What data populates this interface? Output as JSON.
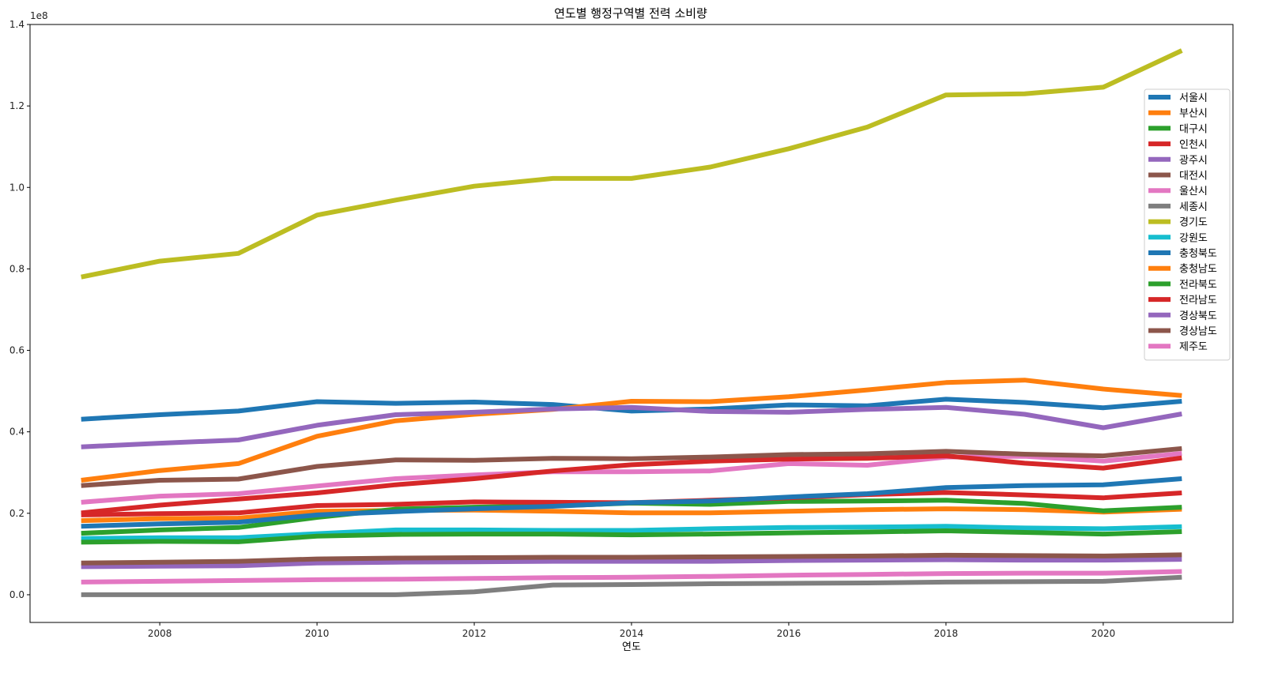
{
  "chart_data": {
    "type": "line",
    "title": "연도별 행정구역별 전력 소비량",
    "xlabel": "연도",
    "ylabel": "",
    "y_offset_label": "1e8",
    "x": [
      2007,
      2008,
      2009,
      2010,
      2011,
      2012,
      2013,
      2014,
      2015,
      2016,
      2017,
      2018,
      2019,
      2020,
      2021
    ],
    "xlim": [
      2006.35,
      2021.65
    ],
    "ylim": [
      -0.068,
      1.4
    ],
    "x_ticks": [
      2008,
      2010,
      2012,
      2014,
      2016,
      2018,
      2020
    ],
    "y_ticks": [
      "0.0",
      "0.2",
      "0.4",
      "0.6",
      "0.8",
      "1.0",
      "1.2",
      "1.4"
    ],
    "y_tick_values": [
      0.0,
      0.2,
      0.4,
      0.6,
      0.8,
      1.0,
      1.2,
      1.4
    ],
    "legend_position": "right",
    "grid": false,
    "series": [
      {
        "name": "서울시",
        "color": "#1f77b4",
        "values": [
          0.431,
          0.442,
          0.451,
          0.474,
          0.47,
          0.473,
          0.467,
          0.451,
          0.456,
          0.466,
          0.464,
          0.48,
          0.472,
          0.459,
          0.475
        ]
      },
      {
        "name": "부산시",
        "color": "#ff7f0e",
        "values": [
          0.182,
          0.187,
          0.188,
          0.205,
          0.207,
          0.208,
          0.205,
          0.201,
          0.201,
          0.205,
          0.209,
          0.211,
          0.209,
          0.203,
          0.21
        ]
      },
      {
        "name": "대구시",
        "color": "#2ca02c",
        "values": [
          0.151,
          0.159,
          0.165,
          0.19,
          0.21,
          0.215,
          0.218,
          0.225,
          0.222,
          0.229,
          0.23,
          0.232,
          0.224,
          0.206,
          0.215
        ]
      },
      {
        "name": "인천시",
        "color": "#d62728",
        "values": [
          0.196,
          0.199,
          0.201,
          0.219,
          0.222,
          0.228,
          0.227,
          0.226,
          0.232,
          0.238,
          0.246,
          0.251,
          0.245,
          0.238,
          0.25
        ]
      },
      {
        "name": "광주시",
        "color": "#9467bd",
        "values": [
          0.069,
          0.07,
          0.071,
          0.078,
          0.08,
          0.081,
          0.082,
          0.082,
          0.082,
          0.084,
          0.085,
          0.086,
          0.085,
          0.085,
          0.087
        ]
      },
      {
        "name": "대전시",
        "color": "#8c564b",
        "values": [
          0.078,
          0.08,
          0.082,
          0.088,
          0.09,
          0.091,
          0.092,
          0.092,
          0.093,
          0.094,
          0.095,
          0.097,
          0.096,
          0.095,
          0.098
        ]
      },
      {
        "name": "울산시",
        "color": "#e377c2",
        "values": [
          0.227,
          0.242,
          0.248,
          0.267,
          0.285,
          0.294,
          0.302,
          0.302,
          0.304,
          0.322,
          0.318,
          0.338,
          0.34,
          0.328,
          0.347
        ]
      },
      {
        "name": "세종시",
        "color": "#7f7f7f",
        "values": [
          0.0,
          0.0,
          0.0,
          0.0,
          0.0,
          0.007,
          0.024,
          0.025,
          0.027,
          0.028,
          0.029,
          0.031,
          0.032,
          0.033,
          0.043
        ]
      },
      {
        "name": "경기도",
        "color": "#bcbd22",
        "values": [
          0.78,
          0.819,
          0.838,
          0.932,
          0.969,
          1.003,
          1.022,
          1.022,
          1.05,
          1.095,
          1.148,
          1.227,
          1.23,
          1.246,
          1.336
        ]
      },
      {
        "name": "강원도",
        "color": "#17becf",
        "values": [
          0.138,
          0.14,
          0.14,
          0.15,
          0.159,
          0.159,
          0.158,
          0.158,
          0.162,
          0.165,
          0.166,
          0.168,
          0.164,
          0.162,
          0.167
        ]
      },
      {
        "name": "충청북도",
        "color": "#1f77b4",
        "values": [
          0.168,
          0.174,
          0.178,
          0.196,
          0.204,
          0.211,
          0.217,
          0.226,
          0.23,
          0.24,
          0.248,
          0.263,
          0.268,
          0.27,
          0.285
        ]
      },
      {
        "name": "충청남도",
        "color": "#ff7f0e",
        "values": [
          0.281,
          0.305,
          0.322,
          0.389,
          0.427,
          0.443,
          0.455,
          0.475,
          0.474,
          0.486,
          0.503,
          0.521,
          0.527,
          0.505,
          0.489
        ]
      },
      {
        "name": "전라북도",
        "color": "#2ca02c",
        "values": [
          0.129,
          0.131,
          0.13,
          0.144,
          0.148,
          0.149,
          0.149,
          0.147,
          0.149,
          0.152,
          0.154,
          0.157,
          0.153,
          0.149,
          0.155
        ]
      },
      {
        "name": "전라남도",
        "color": "#d62728",
        "values": [
          0.201,
          0.22,
          0.235,
          0.25,
          0.27,
          0.285,
          0.304,
          0.319,
          0.328,
          0.333,
          0.335,
          0.341,
          0.323,
          0.311,
          0.336
        ]
      },
      {
        "name": "경상북도",
        "color": "#9467bd",
        "values": [
          0.363,
          0.372,
          0.38,
          0.416,
          0.442,
          0.448,
          0.456,
          0.46,
          0.45,
          0.448,
          0.455,
          0.46,
          0.443,
          0.41,
          0.444
        ]
      },
      {
        "name": "경상남도",
        "color": "#8c564b",
        "values": [
          0.268,
          0.281,
          0.284,
          0.315,
          0.331,
          0.33,
          0.335,
          0.334,
          0.338,
          0.344,
          0.346,
          0.352,
          0.345,
          0.341,
          0.359
        ]
      },
      {
        "name": "제주도",
        "color": "#e377c2",
        "values": [
          0.031,
          0.033,
          0.035,
          0.037,
          0.038,
          0.04,
          0.042,
          0.043,
          0.045,
          0.048,
          0.05,
          0.052,
          0.053,
          0.053,
          0.057
        ]
      }
    ]
  }
}
